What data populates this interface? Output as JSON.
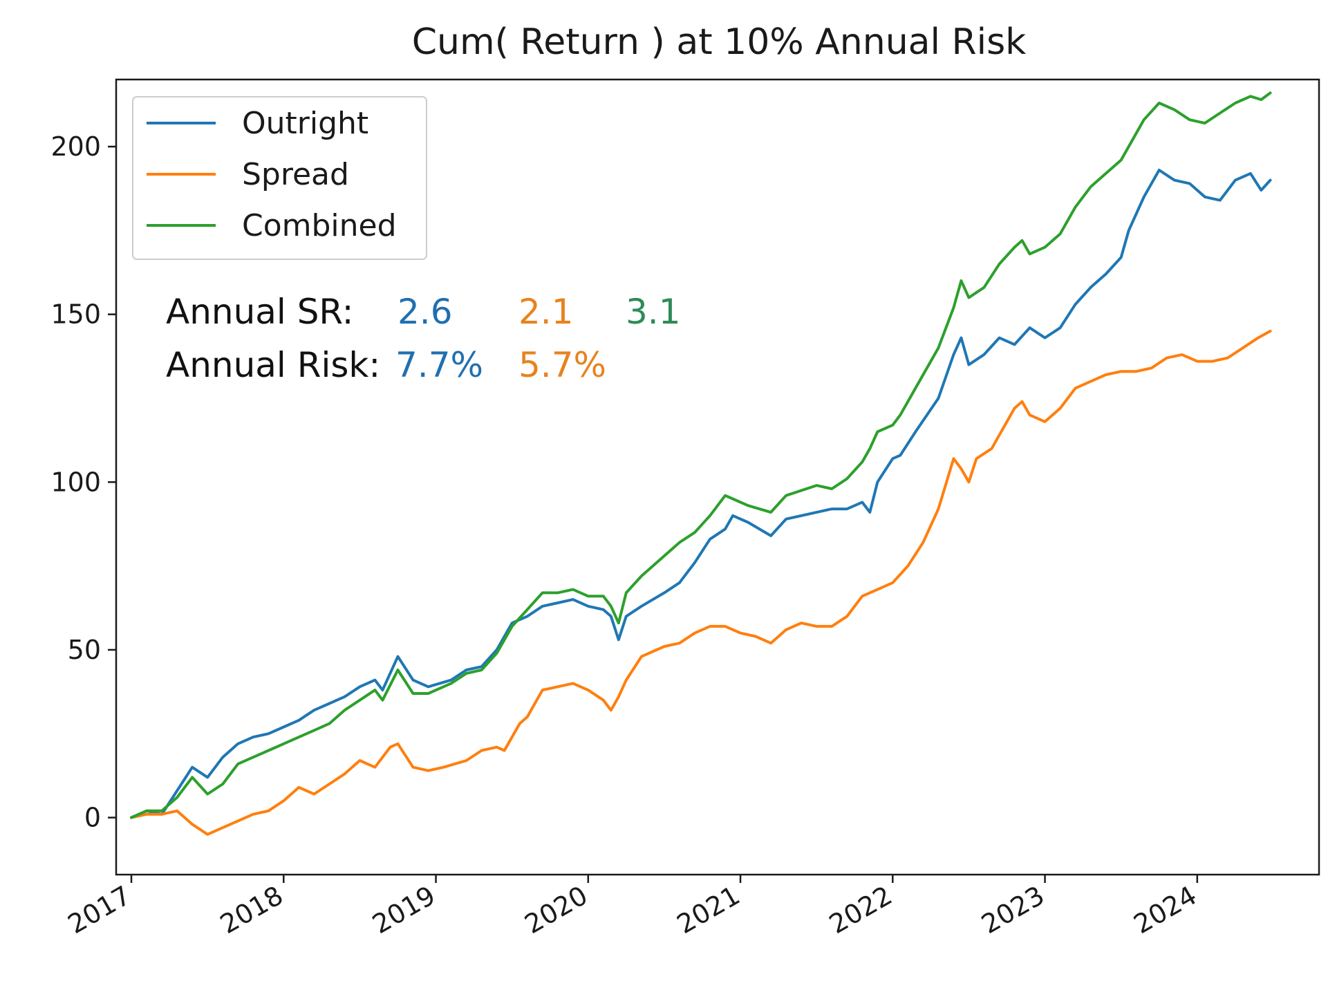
{
  "chart_data": {
    "type": "line",
    "title": "Cum( Return ) at 10% Annual Risk",
    "xlabel": "",
    "ylabel": "",
    "x_ticks": [
      "2017",
      "2018",
      "2019",
      "2020",
      "2021",
      "2022",
      "2023",
      "2024"
    ],
    "y_ticks": [
      0,
      50,
      100,
      150,
      200
    ],
    "xlim": [
      2016.9,
      2024.8
    ],
    "ylim": [
      -17,
      220
    ],
    "grid": false,
    "legend_position": "top-left",
    "series": [
      {
        "name": "Outright",
        "color": "#1f77b4",
        "points": [
          [
            2017.0,
            0
          ],
          [
            2017.1,
            2
          ],
          [
            2017.2,
            1
          ],
          [
            2017.3,
            8
          ],
          [
            2017.4,
            15
          ],
          [
            2017.5,
            12
          ],
          [
            2017.6,
            18
          ],
          [
            2017.7,
            22
          ],
          [
            2017.8,
            24
          ],
          [
            2017.9,
            25
          ],
          [
            2018.0,
            27
          ],
          [
            2018.1,
            29
          ],
          [
            2018.2,
            32
          ],
          [
            2018.3,
            34
          ],
          [
            2018.4,
            36
          ],
          [
            2018.5,
            39
          ],
          [
            2018.6,
            41
          ],
          [
            2018.65,
            38
          ],
          [
            2018.75,
            48
          ],
          [
            2018.85,
            41
          ],
          [
            2018.95,
            39
          ],
          [
            2019.1,
            41
          ],
          [
            2019.2,
            44
          ],
          [
            2019.3,
            45
          ],
          [
            2019.4,
            50
          ],
          [
            2019.5,
            58
          ],
          [
            2019.6,
            60
          ],
          [
            2019.7,
            63
          ],
          [
            2019.8,
            64
          ],
          [
            2019.9,
            65
          ],
          [
            2020.0,
            63
          ],
          [
            2020.1,
            62
          ],
          [
            2020.15,
            60
          ],
          [
            2020.2,
            53
          ],
          [
            2020.25,
            60
          ],
          [
            2020.35,
            63
          ],
          [
            2020.5,
            67
          ],
          [
            2020.6,
            70
          ],
          [
            2020.7,
            76
          ],
          [
            2020.8,
            83
          ],
          [
            2020.9,
            86
          ],
          [
            2020.95,
            90
          ],
          [
            2021.05,
            88
          ],
          [
            2021.2,
            84
          ],
          [
            2021.3,
            89
          ],
          [
            2021.5,
            91
          ],
          [
            2021.6,
            92
          ],
          [
            2021.7,
            92
          ],
          [
            2021.8,
            94
          ],
          [
            2021.85,
            91
          ],
          [
            2021.9,
            100
          ],
          [
            2022.0,
            107
          ],
          [
            2022.05,
            108
          ],
          [
            2022.15,
            115
          ],
          [
            2022.3,
            125
          ],
          [
            2022.4,
            138
          ],
          [
            2022.45,
            143
          ],
          [
            2022.5,
            135
          ],
          [
            2022.6,
            138
          ],
          [
            2022.7,
            143
          ],
          [
            2022.8,
            141
          ],
          [
            2022.9,
            146
          ],
          [
            2023.0,
            143
          ],
          [
            2023.1,
            146
          ],
          [
            2023.2,
            153
          ],
          [
            2023.3,
            158
          ],
          [
            2023.4,
            162
          ],
          [
            2023.5,
            167
          ],
          [
            2023.55,
            175
          ],
          [
            2023.65,
            185
          ],
          [
            2023.75,
            193
          ],
          [
            2023.85,
            190
          ],
          [
            2023.95,
            189
          ],
          [
            2024.05,
            185
          ],
          [
            2024.15,
            184
          ],
          [
            2024.25,
            190
          ],
          [
            2024.35,
            192
          ],
          [
            2024.42,
            187
          ],
          [
            2024.48,
            190
          ]
        ]
      },
      {
        "name": "Spread",
        "color": "#ff7f0e",
        "points": [
          [
            2017.0,
            0
          ],
          [
            2017.1,
            1
          ],
          [
            2017.2,
            1
          ],
          [
            2017.3,
            2
          ],
          [
            2017.4,
            -2
          ],
          [
            2017.5,
            -5
          ],
          [
            2017.6,
            -3
          ],
          [
            2017.7,
            -1
          ],
          [
            2017.8,
            1
          ],
          [
            2017.9,
            2
          ],
          [
            2018.0,
            5
          ],
          [
            2018.1,
            9
          ],
          [
            2018.2,
            7
          ],
          [
            2018.3,
            10
          ],
          [
            2018.4,
            13
          ],
          [
            2018.5,
            17
          ],
          [
            2018.6,
            15
          ],
          [
            2018.7,
            21
          ],
          [
            2018.75,
            22
          ],
          [
            2018.85,
            15
          ],
          [
            2018.95,
            14
          ],
          [
            2019.05,
            15
          ],
          [
            2019.2,
            17
          ],
          [
            2019.3,
            20
          ],
          [
            2019.4,
            21
          ],
          [
            2019.45,
            20
          ],
          [
            2019.55,
            28
          ],
          [
            2019.6,
            30
          ],
          [
            2019.7,
            38
          ],
          [
            2019.8,
            39
          ],
          [
            2019.9,
            40
          ],
          [
            2020.0,
            38
          ],
          [
            2020.1,
            35
          ],
          [
            2020.15,
            32
          ],
          [
            2020.2,
            36
          ],
          [
            2020.25,
            41
          ],
          [
            2020.35,
            48
          ],
          [
            2020.5,
            51
          ],
          [
            2020.6,
            52
          ],
          [
            2020.7,
            55
          ],
          [
            2020.8,
            57
          ],
          [
            2020.9,
            57
          ],
          [
            2021.0,
            55
          ],
          [
            2021.1,
            54
          ],
          [
            2021.2,
            52
          ],
          [
            2021.3,
            56
          ],
          [
            2021.4,
            58
          ],
          [
            2021.5,
            57
          ],
          [
            2021.6,
            57
          ],
          [
            2021.7,
            60
          ],
          [
            2021.8,
            66
          ],
          [
            2021.9,
            68
          ],
          [
            2022.0,
            70
          ],
          [
            2022.1,
            75
          ],
          [
            2022.2,
            82
          ],
          [
            2022.3,
            92
          ],
          [
            2022.4,
            107
          ],
          [
            2022.45,
            104
          ],
          [
            2022.5,
            100
          ],
          [
            2022.55,
            107
          ],
          [
            2022.65,
            110
          ],
          [
            2022.7,
            114
          ],
          [
            2022.8,
            122
          ],
          [
            2022.85,
            124
          ],
          [
            2022.9,
            120
          ],
          [
            2023.0,
            118
          ],
          [
            2023.1,
            122
          ],
          [
            2023.2,
            128
          ],
          [
            2023.3,
            130
          ],
          [
            2023.4,
            132
          ],
          [
            2023.5,
            133
          ],
          [
            2023.6,
            133
          ],
          [
            2023.7,
            134
          ],
          [
            2023.8,
            137
          ],
          [
            2023.9,
            138
          ],
          [
            2024.0,
            136
          ],
          [
            2024.1,
            136
          ],
          [
            2024.2,
            137
          ],
          [
            2024.3,
            140
          ],
          [
            2024.4,
            143
          ],
          [
            2024.48,
            145
          ]
        ]
      },
      {
        "name": "Combined",
        "color": "#2ca02c",
        "points": [
          [
            2017.0,
            0
          ],
          [
            2017.1,
            2
          ],
          [
            2017.2,
            2
          ],
          [
            2017.3,
            6
          ],
          [
            2017.4,
            12
          ],
          [
            2017.5,
            7
          ],
          [
            2017.6,
            10
          ],
          [
            2017.7,
            16
          ],
          [
            2017.8,
            18
          ],
          [
            2017.9,
            20
          ],
          [
            2018.0,
            22
          ],
          [
            2018.1,
            24
          ],
          [
            2018.2,
            26
          ],
          [
            2018.3,
            28
          ],
          [
            2018.4,
            32
          ],
          [
            2018.5,
            35
          ],
          [
            2018.6,
            38
          ],
          [
            2018.65,
            35
          ],
          [
            2018.75,
            44
          ],
          [
            2018.85,
            37
          ],
          [
            2018.95,
            37
          ],
          [
            2019.1,
            40
          ],
          [
            2019.2,
            43
          ],
          [
            2019.3,
            44
          ],
          [
            2019.4,
            49
          ],
          [
            2019.5,
            57
          ],
          [
            2019.6,
            62
          ],
          [
            2019.7,
            67
          ],
          [
            2019.8,
            67
          ],
          [
            2019.9,
            68
          ],
          [
            2020.0,
            66
          ],
          [
            2020.1,
            66
          ],
          [
            2020.15,
            63
          ],
          [
            2020.2,
            58
          ],
          [
            2020.25,
            67
          ],
          [
            2020.35,
            72
          ],
          [
            2020.5,
            78
          ],
          [
            2020.6,
            82
          ],
          [
            2020.7,
            85
          ],
          [
            2020.8,
            90
          ],
          [
            2020.9,
            96
          ],
          [
            2020.95,
            95
          ],
          [
            2021.05,
            93
          ],
          [
            2021.2,
            91
          ],
          [
            2021.3,
            96
          ],
          [
            2021.5,
            99
          ],
          [
            2021.6,
            98
          ],
          [
            2021.7,
            101
          ],
          [
            2021.8,
            106
          ],
          [
            2021.85,
            110
          ],
          [
            2021.9,
            115
          ],
          [
            2022.0,
            117
          ],
          [
            2022.05,
            120
          ],
          [
            2022.15,
            128
          ],
          [
            2022.3,
            140
          ],
          [
            2022.4,
            152
          ],
          [
            2022.45,
            160
          ],
          [
            2022.5,
            155
          ],
          [
            2022.6,
            158
          ],
          [
            2022.7,
            165
          ],
          [
            2022.8,
            170
          ],
          [
            2022.85,
            172
          ],
          [
            2022.9,
            168
          ],
          [
            2023.0,
            170
          ],
          [
            2023.1,
            174
          ],
          [
            2023.2,
            182
          ],
          [
            2023.3,
            188
          ],
          [
            2023.4,
            192
          ],
          [
            2023.5,
            196
          ],
          [
            2023.55,
            200
          ],
          [
            2023.65,
            208
          ],
          [
            2023.75,
            213
          ],
          [
            2023.85,
            211
          ],
          [
            2023.95,
            208
          ],
          [
            2024.05,
            207
          ],
          [
            2024.15,
            210
          ],
          [
            2024.25,
            213
          ],
          [
            2024.35,
            215
          ],
          [
            2024.42,
            214
          ],
          [
            2024.48,
            216
          ]
        ]
      }
    ],
    "annotations": {
      "sr_label": "Annual SR:",
      "sr_values": [
        {
          "text": "2.6",
          "color": "#1f6fb0"
        },
        {
          "text": "2.1",
          "color": "#e8821e"
        },
        {
          "text": "3.1",
          "color": "#2e8b57"
        }
      ],
      "risk_label": "Annual Risk:",
      "risk_values": [
        {
          "text": "7.7%",
          "color": "#1f6fb0"
        },
        {
          "text": "5.7%",
          "color": "#e8821e"
        }
      ]
    }
  }
}
